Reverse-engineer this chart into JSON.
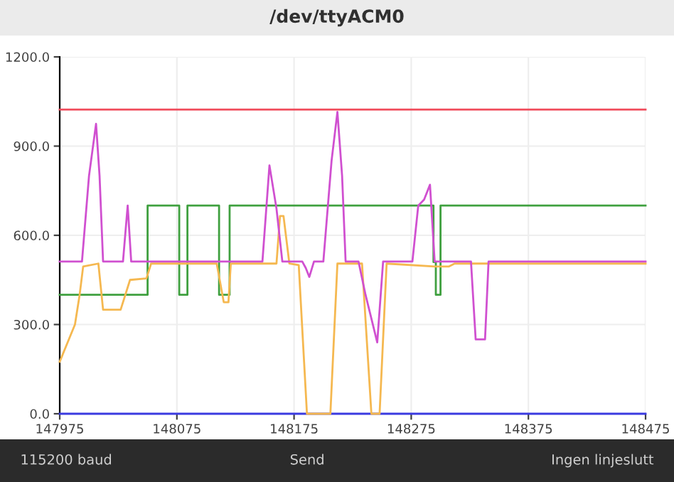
{
  "chart_data": {
    "type": "line",
    "title": "/dev/ttyACM0",
    "xlim": [
      147975,
      148475
    ],
    "xticks": [
      147975,
      148075,
      148175,
      148275,
      148375,
      148475
    ],
    "ylim": [
      0,
      1200
    ],
    "yticks": [
      {
        "value": 0,
        "label": "0.0"
      },
      {
        "value": 300,
        "label": "300.0"
      },
      {
        "value": 600,
        "label": "600.0"
      },
      {
        "value": 900,
        "label": "900.0"
      },
      {
        "value": 1200,
        "label": "1200.0"
      }
    ],
    "grid": true,
    "legend": false,
    "marker": "none",
    "line_style": "solid",
    "annotations": [
      "115200 baud",
      "Send",
      "Ingen linjeslutt"
    ],
    "series": [
      {
        "color": "#3a3ae0",
        "x": [
          147975,
          148475
        ],
        "values": [
          0,
          0
        ]
      },
      {
        "color": "#f04a5a",
        "x": [
          147975,
          148475
        ],
        "values": [
          1023,
          1023
        ]
      },
      {
        "color": "#3fa03f",
        "x": [
          147975,
          148050,
          148050,
          148077,
          148077,
          148084,
          148084,
          148111,
          148111,
          148120,
          148120,
          148294,
          148294,
          148296,
          148296,
          148300,
          148300,
          148475
        ],
        "values": [
          400,
          400,
          700,
          700,
          400,
          400,
          700,
          700,
          400,
          400,
          700,
          700,
          510,
          510,
          400,
          400,
          700,
          700
        ]
      },
      {
        "color": "#f5b850",
        "x": [
          147975,
          147988,
          147992,
          147995,
          148008,
          148012,
          148027,
          148035,
          148049,
          148053,
          148109,
          148115,
          148119,
          148121,
          148160,
          148163,
          148166,
          148171,
          148179,
          148186,
          148206,
          148212,
          148233,
          148241,
          148248,
          148254,
          148295,
          148307,
          148312,
          148475
        ],
        "values": [
          175,
          300,
          400,
          495,
          505,
          350,
          350,
          450,
          455,
          505,
          505,
          375,
          375,
          505,
          505,
          665,
          665,
          505,
          500,
          0,
          0,
          505,
          505,
          0,
          0,
          505,
          495,
          495,
          505,
          505
        ]
      },
      {
        "color": "#d050d0",
        "x": [
          147975,
          147994,
          148000,
          148006,
          148009,
          148012,
          148029,
          148033,
          148036,
          148148,
          148154,
          148160,
          148165,
          148182,
          148185,
          148188,
          148192,
          148200,
          148207,
          148212,
          148216,
          148219,
          148230,
          148236,
          148246,
          148251,
          148276,
          148281,
          148286,
          148291,
          148295,
          148326,
          148330,
          148338,
          148341,
          148475
        ],
        "values": [
          512,
          512,
          800,
          975,
          800,
          512,
          512,
          700,
          512,
          512,
          835,
          690,
          512,
          512,
          490,
          460,
          512,
          512,
          850,
          1015,
          800,
          512,
          512,
          400,
          240,
          512,
          512,
          700,
          720,
          770,
          512,
          512,
          250,
          250,
          512,
          512
        ]
      }
    ]
  }
}
